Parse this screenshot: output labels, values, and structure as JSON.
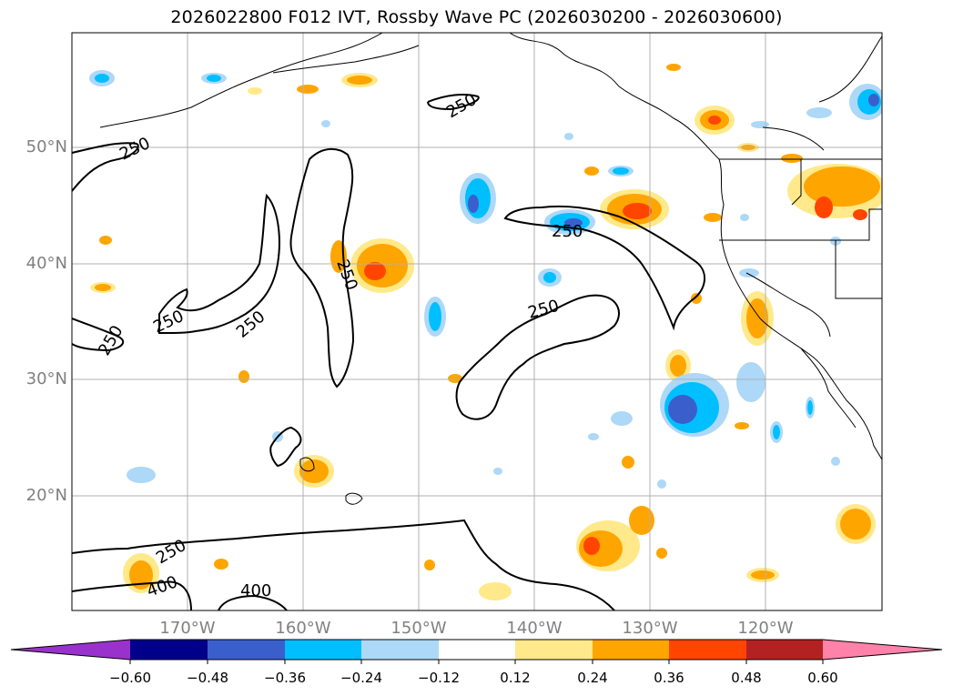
{
  "title": "2026022800 F012 IVT, Rossby Wave PC (2026030200 - 2026030600)",
  "map": {
    "lat_labels": [
      "50°N",
      "40°N",
      "30°N",
      "20°N"
    ],
    "lon_labels": [
      "170°W",
      "160°W",
      "150°W",
      "140°W",
      "130°W",
      "120°W"
    ],
    "contour_labels": [
      "250",
      "250",
      "250",
      "250",
      "250",
      "250",
      "250",
      "250",
      "250",
      "400",
      "400"
    ]
  },
  "colorbar": {
    "colors": [
      "#9932cc",
      "#00008b",
      "#3a5fcd",
      "#00bfff",
      "#add8f8",
      "#ffffff",
      "#ffe98a",
      "#ffa500",
      "#ff4500",
      "#b22222",
      "#ff82ab"
    ],
    "tick_labels": [
      "−0.60",
      "−0.48",
      "−0.36",
      "−0.24",
      "−0.12",
      "0.12",
      "0.24",
      "0.36",
      "0.48",
      "0.60"
    ]
  }
}
